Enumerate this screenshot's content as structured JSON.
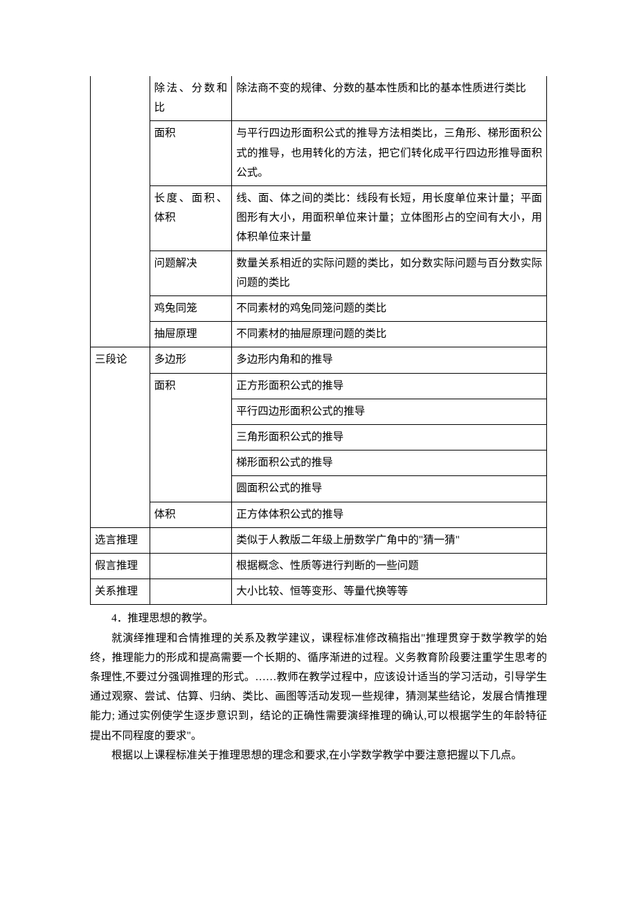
{
  "table": {
    "rows": [
      {
        "c1": "",
        "c2": "除法、分数和比",
        "c3": "除法商不变的规律、分数的基本性质和比的基本性质进行类比"
      },
      {
        "c1": "",
        "c2": "面积",
        "c3": "与平行四边形面积公式的推导方法相类比，三角形、梯形面积公式的推导，也用转化的方法，把它们转化成平行四边形推导面积公式。"
      },
      {
        "c1": "",
        "c2": "长度、面积、体积",
        "c3": "线、面、体之间的类比：线段有长短，用长度单位来计量；平面图形有大小，用面积单位来计量；立体图形占的空间有大小，用体积单位来计量"
      },
      {
        "c1": "",
        "c2": "问题解决",
        "c3": "数量关系相近的实际问题的类比，如分数实际问题与百分数实际问题的类比"
      },
      {
        "c1": "",
        "c2": "鸡兔同笼",
        "c3": "不同素材的鸡兔同笼问题的类比"
      },
      {
        "c1": "",
        "c2": "抽屉原理",
        "c3": "不同素材的抽屉原理问题的类比"
      },
      {
        "c1": "三段论",
        "c2": "多边形",
        "c3": "多边形内角和的推导"
      },
      {
        "c1": "",
        "c2": "面积",
        "c3": "正方形面积公式的推导"
      },
      {
        "c1": "",
        "c2": "",
        "c3": "平行四边形面积公式的推导"
      },
      {
        "c1": "",
        "c2": "",
        "c3": "三角形面积公式的推导"
      },
      {
        "c1": "",
        "c2": "",
        "c3": "梯形面积公式的推导"
      },
      {
        "c1": "",
        "c2": "",
        "c3": "圆面积公式的推导"
      },
      {
        "c1": "",
        "c2": "体积",
        "c3": "正方体体积公式的推导"
      },
      {
        "c1": "选言推理",
        "c2": "",
        "c3": "类似于人教版二年级上册数学广角中的\"猜一猜\""
      },
      {
        "c1": "假言推理",
        "c2": "",
        "c3": "根据概念、性质等进行判断的一些问题"
      },
      {
        "c1": "关系推理",
        "c2": "",
        "c3": "大小比较、恒等变形、等量代换等等"
      }
    ],
    "col1_rowspans": [
      6,
      7,
      1,
      1,
      1
    ],
    "col2_rowspans": [
      1,
      1,
      1,
      1,
      1,
      1,
      1,
      5,
      1,
      1,
      1,
      1
    ]
  },
  "paras": {
    "p1": "4．推理思想的教学。",
    "p2": "就演绎推理和合情推理的关系及教学建议，课程标准修改稿指出\"推理贯穿于数学教学的始终，推理能力的形成和提高需要一个长期的、循序渐进的过程。义务教育阶段要注重学生思考的条理性,不要过分强调推理的形式。……教师在教学过程中，应该设计适当的学习活动，引导学生通过观察、尝试、估算、归纳、类比、画图等活动发现一些规律，猜测某些结论，发展合情推理能力; 通过实例使学生逐步意识到，结论的正确性需要演绎推理的确认,可以根据学生的年龄特征提出不同程度的要求\"。",
    "p3": "根据以上课程标准关于推理思想的理念和要求,在小学数学教学中要注意把握以下几点。"
  }
}
